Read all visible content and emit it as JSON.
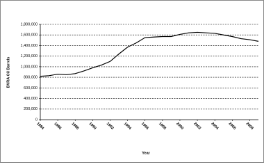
{
  "chart_data": {
    "type": "line",
    "x_label": "Year",
    "y_label": "BVRA Oil Barrels",
    "x": [
      1984,
      1985,
      1986,
      1987,
      1988,
      1989,
      1990,
      1991,
      1992,
      1993,
      1994,
      1995,
      1996,
      1997,
      1998,
      1999,
      2000,
      2001,
      2002,
      2003,
      2004,
      2005,
      2006,
      2007,
      2008,
      2009
    ],
    "series": [
      {
        "color": "#000000",
        "values": [
          820000,
          830000,
          860000,
          850000,
          870000,
          920000,
          980000,
          1030000,
          1100000,
          1240000,
          1370000,
          1450000,
          1550000,
          1560000,
          1570000,
          1570000,
          1610000,
          1640000,
          1650000,
          1640000,
          1630000,
          1600000,
          1570000,
          1530000,
          1510000,
          1480000
        ]
      }
    ],
    "xlim": [
      1984,
      2009
    ],
    "xticks": [
      1984,
      1986,
      1988,
      1990,
      1992,
      1994,
      1996,
      1998,
      2000,
      2002,
      2004,
      2006,
      2008
    ],
    "ylim": [
      0,
      1800000
    ],
    "yticks": [
      0,
      {
        "value": 200000,
        "label": "200,000"
      },
      {
        "value": 400000,
        "label": "400,000"
      },
      {
        "value": 600000,
        "label": "600,000"
      },
      {
        "value": 800000,
        "label": "800,000"
      },
      {
        "value": 1000000,
        "label": "1,000,000"
      },
      {
        "value": 1200000,
        "label": "1,200,000"
      },
      {
        "value": 1400000,
        "label": "1,400,000"
      },
      {
        "value": 1600000,
        "label": "1,600,000"
      },
      {
        "value": 1800000,
        "label": "1,800,000"
      }
    ],
    "grid": true
  }
}
